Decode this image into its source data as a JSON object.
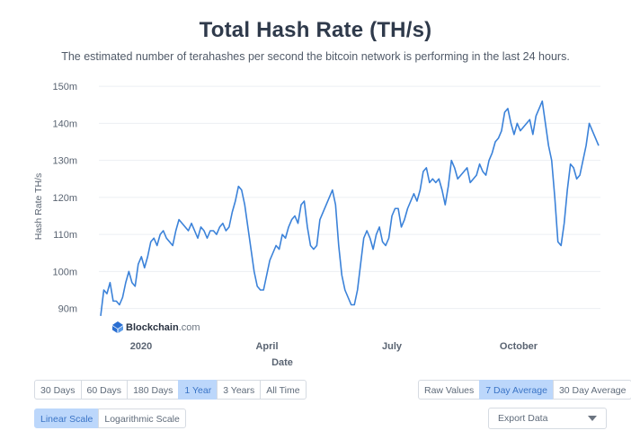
{
  "header": {
    "title": "Total Hash Rate (TH/s)",
    "subtitle": "The estimated number of terahashes per second the bitcoin network is performing in the last 24 hours."
  },
  "watermark": {
    "brand": "Blockchain",
    "suffix": ".com"
  },
  "colors": {
    "line": "#3b82d9",
    "grid": "#eceff3",
    "axis_text": "#5a6472",
    "active_bg": "#bcd7fb"
  },
  "chart_data": {
    "type": "line",
    "title": "Total Hash Rate (TH/s)",
    "xlabel": "Date",
    "ylabel": "Hash Rate TH/s",
    "ylim": [
      87,
      151
    ],
    "y_ticks": [
      90,
      100,
      110,
      120,
      130,
      140,
      150
    ],
    "y_tick_labels": [
      "90m",
      "100m",
      "110m",
      "120m",
      "130m",
      "140m",
      "150m"
    ],
    "x_tick_labels": [
      "2020",
      "April",
      "July",
      "October"
    ],
    "grid": true,
    "series": [
      {
        "values": [
          88,
          95,
          94,
          97,
          92,
          92,
          91,
          93,
          97,
          100,
          97,
          96,
          102,
          104,
          101,
          104,
          108,
          109,
          107,
          110,
          111,
          109,
          108,
          107,
          111,
          114,
          113,
          112,
          111,
          113,
          111,
          109,
          112,
          111,
          109,
          111,
          111,
          110,
          112,
          113,
          111,
          112,
          116,
          119,
          123,
          122,
          118,
          112,
          106,
          100,
          96,
          95,
          95,
          99,
          103,
          105,
          107,
          106,
          110,
          109,
          112,
          114,
          115,
          113,
          118,
          119,
          112,
          107,
          106,
          107,
          114,
          116,
          118,
          120,
          122,
          118,
          107,
          99,
          95,
          93,
          91,
          91,
          95,
          102,
          109,
          111,
          109,
          106,
          110,
          112,
          108,
          107,
          109,
          115,
          117,
          117,
          112,
          114,
          117,
          119,
          121,
          119,
          122,
          127,
          128,
          124,
          125,
          124,
          125,
          122,
          118,
          123,
          130,
          128,
          125,
          126,
          127,
          128,
          124,
          125,
          126,
          129,
          127,
          126,
          130,
          132,
          135,
          136,
          138,
          143,
          144,
          140,
          137,
          140,
          138,
          139,
          140,
          141,
          137,
          142,
          144,
          146,
          140,
          134,
          130,
          120,
          108,
          107,
          113,
          122,
          129,
          128,
          125,
          126,
          130,
          134,
          140,
          138,
          136,
          134
        ]
      }
    ]
  },
  "time_ranges": [
    "30 Days",
    "60 Days",
    "180 Days",
    "1 Year",
    "3 Years",
    "All Time"
  ],
  "active_time_range": "1 Year",
  "averages": [
    "Raw Values",
    "7 Day Average",
    "30 Day Average"
  ],
  "active_average": "7 Day Average",
  "scales": [
    "Linear Scale",
    "Logarithmic Scale"
  ],
  "active_scale": "Linear Scale",
  "export": {
    "label": "Export Data"
  }
}
